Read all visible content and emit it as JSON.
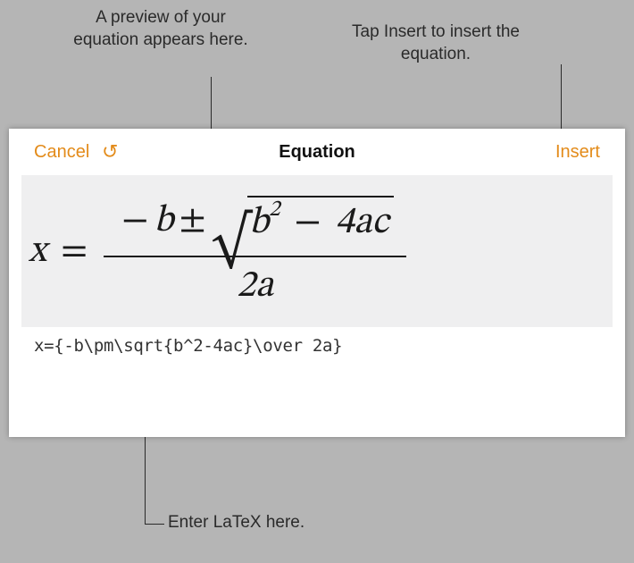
{
  "callouts": {
    "preview": "A preview of your equation appears here.",
    "insert": "Tap Insert to insert the equation.",
    "latex": "Enter LaTeX here."
  },
  "header": {
    "cancel_label": "Cancel",
    "title": "Equation",
    "insert_label": "Insert"
  },
  "equation": {
    "lhs_var": "x",
    "eq": "=",
    "minus": "−",
    "var_b": "b",
    "pm": "±",
    "sqrt_sym": "√",
    "exp": "2",
    "four": "4",
    "var_a": "a",
    "var_c": "c",
    "two": "2"
  },
  "latex_source": "x={-b\\pm\\sqrt{b^2-4ac}\\over 2a}",
  "colors": {
    "accent": "#e38b1a",
    "bg": "#b5b5b5",
    "preview_bg": "#efeff0"
  }
}
